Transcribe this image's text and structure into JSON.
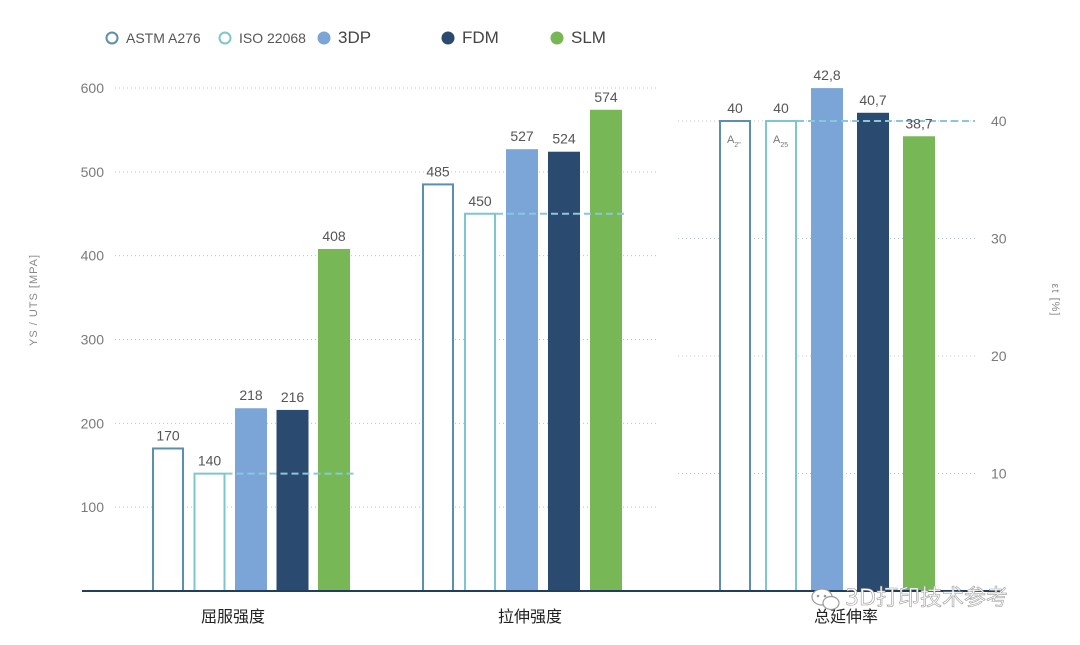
{
  "chart_data": {
    "type": "bar",
    "legend": [
      {
        "name": "ASTM A276",
        "style": "outline",
        "color": "#5a8fae"
      },
      {
        "name": "ISO 22068",
        "style": "outline",
        "color": "#7ec6cf"
      },
      {
        "name": "3DP",
        "style": "filled",
        "color": "#7ba5d6"
      },
      {
        "name": "FDM",
        "style": "filled",
        "color": "#2b4a6f"
      },
      {
        "name": "SLM",
        "style": "filled",
        "color": "#78b755"
      }
    ],
    "legend_placement": "top-left",
    "groups": [
      {
        "label": "屈服强度",
        "axis": "left",
        "values": [
          170,
          140,
          218,
          216,
          408
        ],
        "value_labels": [
          "170",
          "140",
          "218",
          "216",
          "408"
        ],
        "reference": 140
      },
      {
        "label": "拉伸强度",
        "axis": "left",
        "values": [
          485,
          450,
          527,
          524,
          574
        ],
        "value_labels": [
          "485",
          "450",
          "527",
          "524",
          "574"
        ],
        "reference": 450
      },
      {
        "label": "总延伸率",
        "axis": "right",
        "values": [
          40,
          40,
          42.8,
          40.7,
          38.7
        ],
        "value_labels": [
          "40",
          "40",
          "42,8",
          "40,7",
          "38,7"
        ],
        "reference": 40,
        "bar_sublabels": [
          "A",
          "A"
        ],
        "bar_sublabel_subscripts": [
          "2\"",
          "25"
        ]
      }
    ],
    "left_axis": {
      "label": "YS / UTS [MPA]",
      "range": [
        0,
        600
      ],
      "ticks": [
        "100",
        "200",
        "300",
        "400",
        "500",
        "600"
      ]
    },
    "right_axis": {
      "label": "εt [%]",
      "range": [
        0,
        40
      ],
      "ticks": [
        "10",
        "20",
        "30",
        "40"
      ]
    },
    "grid": "dotted horizontal"
  },
  "watermark": {
    "text": "3D打印技术参考",
    "icon": "wechat-icon"
  }
}
